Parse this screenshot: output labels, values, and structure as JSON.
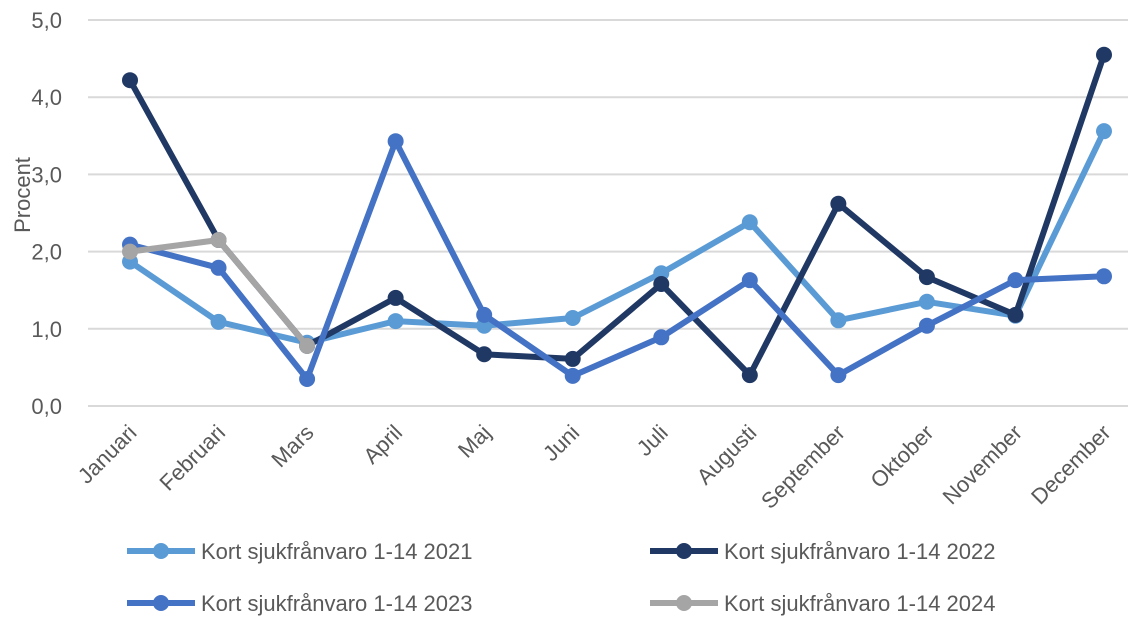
{
  "chart_data": {
    "type": "line",
    "y_label": "Procent",
    "categories": [
      "Januari",
      "Februari",
      "Mars",
      "April",
      "Maj",
      "Juni",
      "Juli",
      "Augusti",
      "September",
      "Oktober",
      "November",
      "December"
    ],
    "series": [
      {
        "name": "Kort sjukfrånvaro 1-14 2021",
        "color": "#5b9bd5",
        "values": [
          1.87,
          1.09,
          0.82,
          1.1,
          1.04,
          1.14,
          1.72,
          2.38,
          1.11,
          1.35,
          1.17,
          3.56
        ]
      },
      {
        "name": "Kort sjukfrånvaro 1-14 2022",
        "color": "#203864",
        "values": [
          4.22,
          2.15,
          0.78,
          1.4,
          0.67,
          0.61,
          1.58,
          0.4,
          2.62,
          1.67,
          1.18,
          4.55
        ]
      },
      {
        "name": "Kort sjukfrånvaro 1-14 2023",
        "color": "#4472c4",
        "values": [
          2.09,
          1.79,
          0.35,
          3.43,
          1.18,
          0.39,
          0.89,
          1.63,
          0.4,
          1.04,
          1.63,
          1.68
        ]
      },
      {
        "name": "Kort sjukfrånvaro 1-14 2024",
        "color": "#a5a5a5",
        "values": [
          2.0,
          2.15,
          0.78,
          null,
          null,
          null,
          null,
          null,
          null,
          null,
          null,
          null
        ]
      }
    ],
    "ylim": [
      0,
      5
    ],
    "yticks": [
      {
        "value": 0,
        "label": "0,0"
      },
      {
        "value": 1,
        "label": "1,0"
      },
      {
        "value": 2,
        "label": "2,0"
      },
      {
        "value": 3,
        "label": "3,0"
      },
      {
        "value": 4,
        "label": "4,0"
      },
      {
        "value": 5,
        "label": "5,0"
      }
    ],
    "grid": true,
    "legend": "bottom"
  }
}
